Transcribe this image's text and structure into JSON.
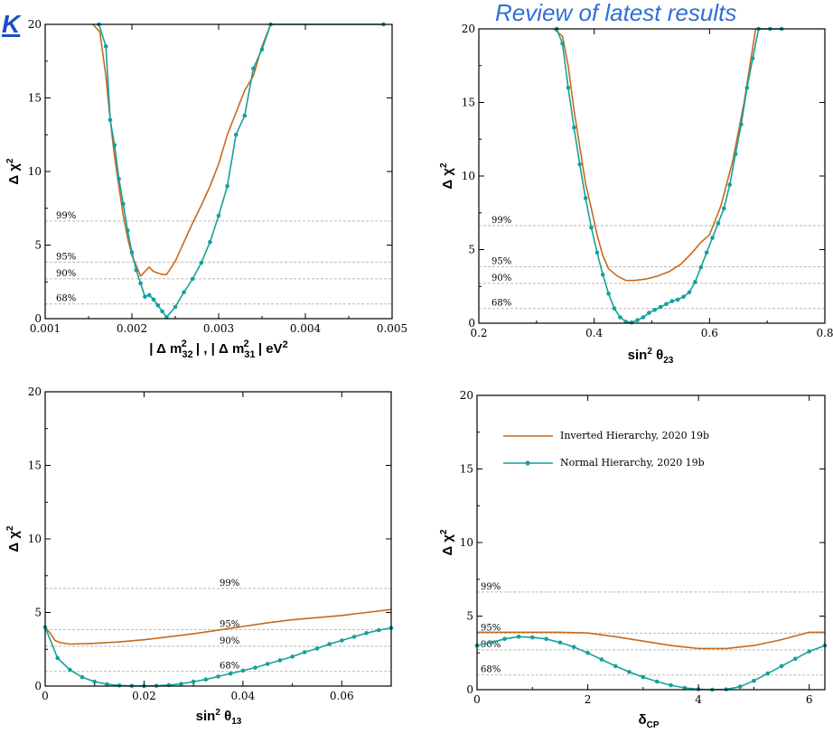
{
  "header": {
    "title": "Review of latest results",
    "k_letter": "K"
  },
  "legend": {
    "inverted": "Inverted Hierarchy,  2020 19b",
    "normal": "Normal Hierarchy,  2020 19b"
  },
  "colors": {
    "inverted": "#c8691c",
    "normal": "#14a19a",
    "refline": "#b8b8b8"
  },
  "chart_data": [
    {
      "id": "dm32",
      "type": "line",
      "ylabel_html": "Δχ²",
      "xlabel": "| Δ m²₃₂ | , | Δ m²₃₁ |  eV²",
      "xlim": [
        0.001,
        0.005
      ],
      "ylim": [
        0,
        20
      ],
      "xticks": [
        0.001,
        0.002,
        0.003,
        0.004,
        0.005
      ],
      "xtick_labels": [
        "0.001",
        "0.002",
        "0.003",
        "0.004",
        "0.005"
      ],
      "yticks": [
        0,
        5,
        10,
        15,
        20
      ],
      "ytick_labels": [
        "0",
        "5",
        "10",
        "15",
        "20"
      ],
      "ref_lines": [
        {
          "label": "99%",
          "y": 6.63
        },
        {
          "label": "95%",
          "y": 3.84
        },
        {
          "label": "90%",
          "y": 2.71
        },
        {
          "label": "68%",
          "y": 1.0
        }
      ],
      "series": [
        {
          "key": "inverted",
          "x": [
            0.00155,
            0.00163,
            0.0017,
            0.00175,
            0.0018,
            0.00185,
            0.0019,
            0.00195,
            0.002,
            0.00205,
            0.0021,
            0.00215,
            0.0022,
            0.00225,
            0.0023,
            0.00235,
            0.0024,
            0.0025,
            0.0026,
            0.0027,
            0.0028,
            0.0029,
            0.003,
            0.0031,
            0.0032,
            0.0033,
            0.0034,
            0.0035,
            0.0036
          ],
          "y": [
            20,
            19.5,
            16.5,
            13.5,
            11,
            9,
            7,
            5.5,
            4.3,
            3.6,
            2.9,
            3.2,
            3.5,
            3.2,
            3.1,
            3.0,
            3.0,
            3.9,
            5.2,
            6.5,
            7.7,
            9.0,
            10.5,
            12.5,
            14,
            15.5,
            16.5,
            18.5,
            20
          ]
        },
        {
          "key": "normal",
          "x": [
            0.00162,
            0.0017,
            0.00175,
            0.0018,
            0.00185,
            0.0019,
            0.00195,
            0.002,
            0.00205,
            0.0021,
            0.00215,
            0.0022,
            0.00225,
            0.0023,
            0.00235,
            0.0024,
            0.0025,
            0.0026,
            0.0027,
            0.0028,
            0.0029,
            0.003,
            0.0031,
            0.0032,
            0.0033,
            0.0034,
            0.0035,
            0.0036,
            0.0049
          ],
          "y": [
            20,
            18.5,
            13.5,
            11.8,
            9.5,
            7.8,
            6.0,
            4.5,
            3.3,
            2.4,
            1.5,
            1.6,
            1.3,
            0.9,
            0.5,
            0.1,
            0.8,
            1.8,
            2.7,
            3.8,
            5.2,
            7.0,
            9.0,
            12.5,
            13.8,
            17.0,
            18.3,
            20,
            20
          ]
        }
      ]
    },
    {
      "id": "th23",
      "type": "line",
      "ylabel_html": "Δχ²",
      "xlabel": "sin² θ₂₃",
      "xlim": [
        0.2,
        0.8
      ],
      "ylim": [
        0,
        20
      ],
      "xticks": [
        0.2,
        0.4,
        0.6,
        0.8
      ],
      "xtick_labels": [
        "0.2",
        "0.4",
        "0.6",
        "0.8"
      ],
      "yticks": [
        0,
        5,
        10,
        15,
        20
      ],
      "ytick_labels": [
        "0",
        "5",
        "10",
        "15",
        "20"
      ],
      "ref_lines": [
        {
          "label": "99%",
          "y": 6.63
        },
        {
          "label": "95%",
          "y": 3.84
        },
        {
          "label": "90%",
          "y": 2.71
        },
        {
          "label": "68%",
          "y": 1.0
        }
      ],
      "series": [
        {
          "key": "inverted",
          "x": [
            0.33,
            0.345,
            0.355,
            0.365,
            0.375,
            0.385,
            0.395,
            0.405,
            0.415,
            0.425,
            0.44,
            0.455,
            0.47,
            0.49,
            0.51,
            0.53,
            0.55,
            0.57,
            0.585,
            0.6,
            0.62,
            0.64,
            0.66,
            0.68
          ],
          "y": [
            20,
            19.5,
            17.5,
            14.5,
            12,
            9.5,
            7.8,
            6.0,
            4.6,
            3.7,
            3.2,
            2.9,
            2.9,
            3.0,
            3.2,
            3.5,
            4.0,
            4.8,
            5.5,
            6.0,
            8.0,
            11.0,
            15.0,
            20
          ]
        },
        {
          "key": "normal",
          "x": [
            0.335,
            0.345,
            0.355,
            0.365,
            0.375,
            0.385,
            0.395,
            0.405,
            0.415,
            0.425,
            0.435,
            0.445,
            0.455,
            0.465,
            0.475,
            0.485,
            0.495,
            0.505,
            0.515,
            0.525,
            0.535,
            0.545,
            0.555,
            0.565,
            0.575,
            0.585,
            0.595,
            0.605,
            0.615,
            0.625,
            0.635,
            0.645,
            0.655,
            0.665,
            0.675,
            0.685,
            0.705,
            0.725
          ],
          "y": [
            20,
            19,
            16,
            13.3,
            10.8,
            8.5,
            6.5,
            4.8,
            3.3,
            2.0,
            1.0,
            0.4,
            0.1,
            0.05,
            0.2,
            0.4,
            0.7,
            0.9,
            1.1,
            1.3,
            1.5,
            1.6,
            1.8,
            2.1,
            2.8,
            3.8,
            4.8,
            5.8,
            6.8,
            7.8,
            9.4,
            11.5,
            13.5,
            16.0,
            18.0,
            20,
            20,
            20
          ]
        }
      ]
    },
    {
      "id": "th13",
      "type": "line",
      "ylabel_html": "Δχ²",
      "xlabel": "sin² θ₁₃",
      "xlim": [
        0,
        0.07
      ],
      "ylim": [
        0,
        20
      ],
      "xticks": [
        0,
        0.02,
        0.04,
        0.06
      ],
      "xtick_labels": [
        "0",
        "0.02",
        "0.04",
        "0.06"
      ],
      "yticks": [
        0,
        5,
        10,
        15,
        20
      ],
      "ytick_labels": [
        "0",
        "5",
        "10",
        "15",
        "20"
      ],
      "ref_lines": [
        {
          "label": "99%",
          "y": 6.63
        },
        {
          "label": "95%",
          "y": 3.84
        },
        {
          "label": "90%",
          "y": 2.71
        },
        {
          "label": "68%",
          "y": 1.0
        }
      ],
      "series": [
        {
          "key": "inverted",
          "x": [
            0,
            0.001,
            0.002,
            0.003,
            0.005,
            0.01,
            0.015,
            0.02,
            0.025,
            0.03,
            0.035,
            0.04,
            0.045,
            0.05,
            0.055,
            0.06,
            0.065,
            0.07
          ],
          "y": [
            4.0,
            3.6,
            3.1,
            2.95,
            2.85,
            2.9,
            3.0,
            3.15,
            3.35,
            3.55,
            3.8,
            4.05,
            4.3,
            4.5,
            4.65,
            4.8,
            5.0,
            5.2
          ]
        },
        {
          "key": "normal",
          "x": [
            0,
            0.0025,
            0.005,
            0.0075,
            0.01,
            0.0125,
            0.015,
            0.0175,
            0.02,
            0.0225,
            0.025,
            0.0275,
            0.03,
            0.0325,
            0.035,
            0.0375,
            0.04,
            0.0425,
            0.045,
            0.0475,
            0.05,
            0.0525,
            0.055,
            0.0575,
            0.06,
            0.0625,
            0.065,
            0.0675,
            0.07
          ],
          "y": [
            4.0,
            1.9,
            1.1,
            0.6,
            0.3,
            0.12,
            0.04,
            0.01,
            0.0,
            0.02,
            0.07,
            0.15,
            0.3,
            0.45,
            0.65,
            0.85,
            1.05,
            1.25,
            1.5,
            1.75,
            2.0,
            2.3,
            2.55,
            2.85,
            3.1,
            3.35,
            3.6,
            3.8,
            3.95
          ]
        }
      ]
    },
    {
      "id": "dcp",
      "type": "line",
      "ylabel_html": "Δχ²",
      "xlabel": "δCP",
      "xlim": [
        0,
        6.283
      ],
      "ylim": [
        0,
        20
      ],
      "xticks": [
        0,
        2,
        4,
        6
      ],
      "xtick_labels": [
        "0",
        "2",
        "4",
        "6"
      ],
      "yticks": [
        0,
        5,
        10,
        15,
        20
      ],
      "ytick_labels": [
        "0",
        "5",
        "10",
        "15",
        "20"
      ],
      "ref_lines": [
        {
          "label": "99%",
          "y": 6.63
        },
        {
          "label": "95%",
          "y": 3.84
        },
        {
          "label": "90%",
          "y": 2.71
        },
        {
          "label": "68%",
          "y": 1.0
        }
      ],
      "series": [
        {
          "key": "inverted",
          "x": [
            0,
            0.5,
            1.0,
            1.5,
            2.0,
            2.5,
            3.0,
            3.5,
            4.0,
            4.5,
            5.0,
            5.5,
            6.0,
            6.283
          ],
          "y": [
            3.9,
            3.9,
            3.9,
            3.9,
            3.85,
            3.6,
            3.3,
            3.0,
            2.8,
            2.8,
            3.0,
            3.4,
            3.9,
            3.9
          ]
        },
        {
          "key": "normal",
          "x": [
            0,
            0.25,
            0.5,
            0.75,
            1.0,
            1.25,
            1.5,
            1.75,
            2.0,
            2.25,
            2.5,
            2.75,
            3.0,
            3.25,
            3.5,
            3.75,
            4.0,
            4.25,
            4.5,
            4.75,
            5.0,
            5.25,
            5.5,
            5.75,
            6.0,
            6.283
          ],
          "y": [
            3.0,
            3.2,
            3.45,
            3.6,
            3.55,
            3.45,
            3.2,
            2.9,
            2.5,
            2.05,
            1.6,
            1.2,
            0.85,
            0.55,
            0.3,
            0.12,
            0.03,
            0.0,
            0.02,
            0.2,
            0.6,
            1.1,
            1.6,
            2.1,
            2.6,
            3.0
          ]
        }
      ]
    }
  ]
}
